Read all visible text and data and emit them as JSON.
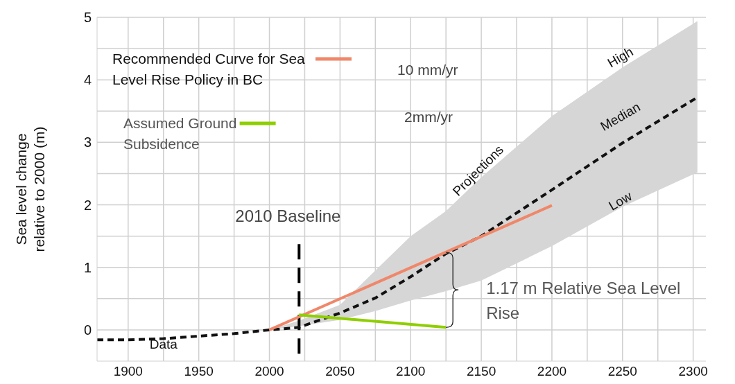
{
  "chart_data": {
    "type": "line",
    "ylabel": "Sea level change\nrelative to 2000 (m)",
    "xlim": [
      1878,
      2309
    ],
    "ylim": [
      -0.5,
      5
    ],
    "xticks": [
      1900,
      {
        "value": 1925,
        "label": null
      },
      1950,
      {
        "value": 1975,
        "label": null
      },
      2000,
      {
        "value": 2025,
        "label": null
      },
      2050,
      {
        "value": 2075,
        "label": null
      },
      2100,
      {
        "value": 2125,
        "label": null
      },
      2150,
      {
        "value": 2175,
        "label": null
      },
      2200,
      {
        "value": 2225,
        "label": null
      },
      2250,
      {
        "value": 2275,
        "label": null
      },
      2300
    ],
    "yticks": [
      0,
      {
        "value": 0.5,
        "label": null
      },
      1,
      {
        "value": 1.5,
        "label": null
      },
      2,
      {
        "value": 2.5,
        "label": null
      },
      3,
      {
        "value": 3.5,
        "label": null
      },
      4,
      {
        "value": 4.5,
        "label": null
      },
      5
    ],
    "grid": true,
    "legend": "top left",
    "marker": "none",
    "series": [
      {
        "color": "#111111",
        "line_style": "dashed",
        "x": [
          1878,
          1900,
          1925,
          1950,
          1975,
          2000,
          2021,
          2050,
          2075,
          2100,
          2125,
          2150,
          2200,
          2250,
          2303
        ],
        "values": [
          -0.16,
          -0.16,
          -0.14,
          -0.1,
          -0.06,
          0,
          0.04,
          0.27,
          0.51,
          0.85,
          1.22,
          1.5,
          2.24,
          2.99,
          3.72
        ],
        "lower": [
          null,
          null,
          null,
          null,
          null,
          0,
          0.06,
          0.16,
          0.3,
          0.47,
          0.62,
          0.79,
          1.34,
          1.97,
          2.52
        ],
        "upper": [
          null,
          null,
          null,
          null,
          null,
          0,
          0.15,
          0.4,
          0.95,
          1.5,
          1.9,
          2.44,
          3.42,
          4.2,
          4.94
        ]
      },
      {
        "name": "Recommended Curve for Sea Level Rise Policy in BC",
        "color": "#f0876a",
        "line_style": "solid",
        "x": [
          2000,
          2200
        ],
        "values": [
          0,
          1.99
        ]
      },
      {
        "name": "Assumed Ground Subsidence",
        "color": "#8fce00",
        "line_style": "solid",
        "x": [
          2021,
          2125
        ],
        "values": [
          0.24,
          0.04
        ]
      }
    ],
    "ref_lines": [
      {
        "axis": "x",
        "value": 2021,
        "label": "2010 Baseline",
        "color": "#000000",
        "line_style": "dashed"
      }
    ],
    "annotations": [
      "10 mm/yr",
      "2mm/yr",
      "Projections",
      "High",
      "Median",
      "Low",
      "Data",
      {
        "text": "1.17 m Relative Sea Level Rise",
        "x": 2125,
        "y": 0.64
      }
    ]
  }
}
